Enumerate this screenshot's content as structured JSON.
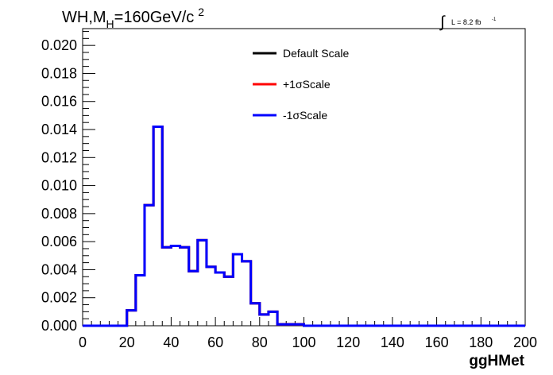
{
  "chart_data": {
    "type": "line",
    "title": {
      "main": "WH,M",
      "sub": "H",
      "rest": "=160GeV/c",
      "sup": "2"
    },
    "lumi": {
      "integral": "∫",
      "text": "L = 8.2 fb",
      "sup": "-1"
    },
    "xlabel": "ggHMet",
    "ylabel": "",
    "xlim": [
      0,
      200
    ],
    "ylim": [
      0,
      0.0212
    ],
    "x_ticks": [
      "0",
      "20",
      "40",
      "60",
      "80",
      "100",
      "120",
      "140",
      "160",
      "180",
      "200"
    ],
    "y_ticks": [
      "0.000",
      "0.002",
      "0.004",
      "0.006",
      "0.008",
      "0.010",
      "0.012",
      "0.014",
      "0.016",
      "0.018",
      "0.020"
    ],
    "grid": false,
    "legend_position": "top-center",
    "bin_edges": [
      0,
      4,
      8,
      12,
      16,
      20,
      24,
      28,
      32,
      36,
      40,
      44,
      48,
      52,
      56,
      60,
      64,
      68,
      72,
      76,
      80,
      84,
      88,
      92,
      96,
      100,
      104,
      108,
      112,
      116,
      120,
      124,
      128,
      132,
      136,
      140,
      144,
      148,
      152,
      156,
      160,
      164,
      168,
      172,
      176,
      180,
      184,
      188,
      192,
      196,
      200
    ],
    "series": [
      {
        "name": "Default Scale",
        "color": "#000000",
        "values": [
          0,
          0,
          0,
          0,
          0,
          0.0011,
          0.0036,
          0.0086,
          0.0142,
          0.0056,
          0.0057,
          0.0056,
          0.0039,
          0.0061,
          0.0042,
          0.0038,
          0.0035,
          0.0051,
          0.0046,
          0.0016,
          0.0008,
          0.001,
          0.0001,
          0.0001,
          0.0001,
          0,
          0,
          0,
          0,
          0,
          0,
          0,
          0,
          0,
          0,
          0,
          0,
          0,
          0,
          0,
          0,
          0,
          0,
          0,
          0,
          0,
          0,
          0,
          0,
          0
        ]
      },
      {
        "name": "+1σScale",
        "color": "#ff0000",
        "values": [
          0,
          0,
          0,
          0,
          0,
          0.0011,
          0.0036,
          0.0086,
          0.0142,
          0.0056,
          0.0057,
          0.0056,
          0.0039,
          0.0061,
          0.0042,
          0.0038,
          0.0035,
          0.0051,
          0.0046,
          0.0016,
          0.0008,
          0.001,
          0.0001,
          0.0001,
          0.0001,
          0,
          0,
          0,
          0,
          0,
          0,
          0,
          0,
          0,
          0,
          0,
          0,
          0,
          0,
          0,
          0,
          0,
          0,
          0,
          0,
          0,
          0,
          0,
          0,
          0
        ]
      },
      {
        "name": "-1σScale",
        "color": "#0000ff",
        "values": [
          0,
          0,
          0,
          0,
          0,
          0.0011,
          0.0036,
          0.0086,
          0.0142,
          0.0056,
          0.0057,
          0.0056,
          0.0039,
          0.0061,
          0.0042,
          0.0038,
          0.0035,
          0.0051,
          0.0046,
          0.0016,
          0.0008,
          0.001,
          0.0001,
          0.0001,
          0.0001,
          0,
          0,
          0,
          0,
          0,
          0,
          0,
          0,
          0,
          0,
          0,
          0,
          0,
          0,
          0,
          0,
          0,
          0,
          0,
          0,
          0,
          0,
          0,
          0,
          0
        ]
      }
    ]
  }
}
